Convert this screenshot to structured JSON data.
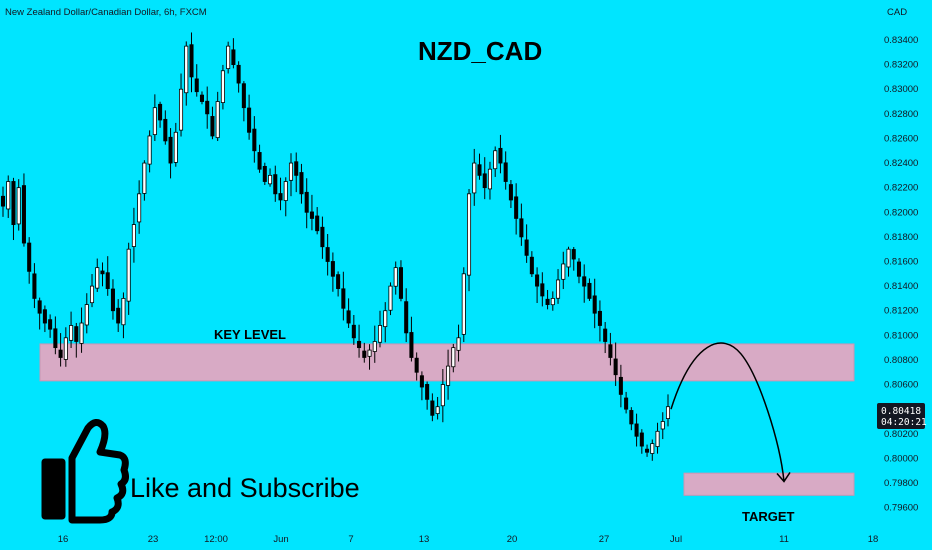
{
  "header": {
    "instrument": "New Zealand Dollar/Canadian Dollar, 6h, FXCM",
    "currency": "CAD",
    "title": "NZD_CAD"
  },
  "annotations": {
    "key_level": "KEY LEVEL",
    "target": "TARGET",
    "promo": "Like and Subscribe"
  },
  "price_badge": {
    "price": "0.80418",
    "countdown": "04:20:21"
  },
  "colors": {
    "background": "#00e5ff",
    "candle": "#000000",
    "zone": "#d8aac5",
    "badge": "#131722"
  },
  "icons": [
    "thumbs-up-icon",
    "projection-arrow-icon"
  ],
  "chart_data": {
    "type": "candlestick",
    "title": "NZD_CAD",
    "xlabel": "",
    "ylabel": "CAD",
    "ylim": [
      0.7945,
      0.8355
    ],
    "grid": false,
    "x_ticks": [
      "16",
      "23",
      "12:00",
      "Jun",
      "7",
      "13",
      "20",
      "27",
      "Jul",
      "11",
      "18"
    ],
    "y_ticks": [
      "0.83400",
      "0.83200",
      "0.83000",
      "0.82800",
      "0.82600",
      "0.82400",
      "0.82200",
      "0.82000",
      "0.81800",
      "0.81600",
      "0.81400",
      "0.81200",
      "0.81000",
      "0.80800",
      "0.80600",
      "0.80400",
      "0.80200",
      "0.80000",
      "0.79800",
      "0.79600"
    ],
    "zones": [
      {
        "name": "KEY LEVEL",
        "from": 0.8063,
        "to": 0.8093
      },
      {
        "name": "TARGET",
        "from": 0.797,
        "to": 0.7988
      }
    ],
    "projection": {
      "from": 0.804,
      "peak": 0.808,
      "to": 0.7978
    },
    "last_price": 0.80418,
    "price_path": [
      0.8205,
      0.8225,
      0.819,
      0.822,
      0.8175,
      0.8152,
      0.813,
      0.8118,
      0.811,
      0.8105,
      0.809,
      0.8082,
      0.8098,
      0.8108,
      0.8095,
      0.811,
      0.8125,
      0.814,
      0.8155,
      0.815,
      0.8138,
      0.812,
      0.811,
      0.813,
      0.817,
      0.819,
      0.8215,
      0.824,
      0.8262,
      0.8285,
      0.8275,
      0.8258,
      0.824,
      0.8265,
      0.83,
      0.8335,
      0.831,
      0.8298,
      0.829,
      0.828,
      0.8262,
      0.829,
      0.8315,
      0.8335,
      0.832,
      0.8305,
      0.8285,
      0.8265,
      0.825,
      0.8235,
      0.8225,
      0.823,
      0.8215,
      0.821,
      0.8225,
      0.824,
      0.823,
      0.8215,
      0.82,
      0.8195,
      0.8185,
      0.8172,
      0.816,
      0.8148,
      0.8138,
      0.8122,
      0.811,
      0.8098,
      0.809,
      0.8082,
      0.8088,
      0.8095,
      0.8108,
      0.812,
      0.814,
      0.8155,
      0.813,
      0.8102,
      0.8082,
      0.807,
      0.8058,
      0.8048,
      0.8035,
      0.8042,
      0.806,
      0.8075,
      0.809,
      0.8098,
      0.815,
      0.8215,
      0.824,
      0.823,
      0.822,
      0.8235,
      0.825,
      0.824,
      0.8225,
      0.821,
      0.8195,
      0.818,
      0.8165,
      0.815,
      0.814,
      0.8132,
      0.8125,
      0.813,
      0.8145,
      0.8158,
      0.817,
      0.8162,
      0.8148,
      0.814,
      0.813,
      0.8118,
      0.8108,
      0.8095,
      0.8082,
      0.8068,
      0.8052,
      0.804,
      0.8028,
      0.8018,
      0.801,
      0.8005,
      0.8012,
      0.8022,
      0.803,
      0.8042
    ]
  }
}
